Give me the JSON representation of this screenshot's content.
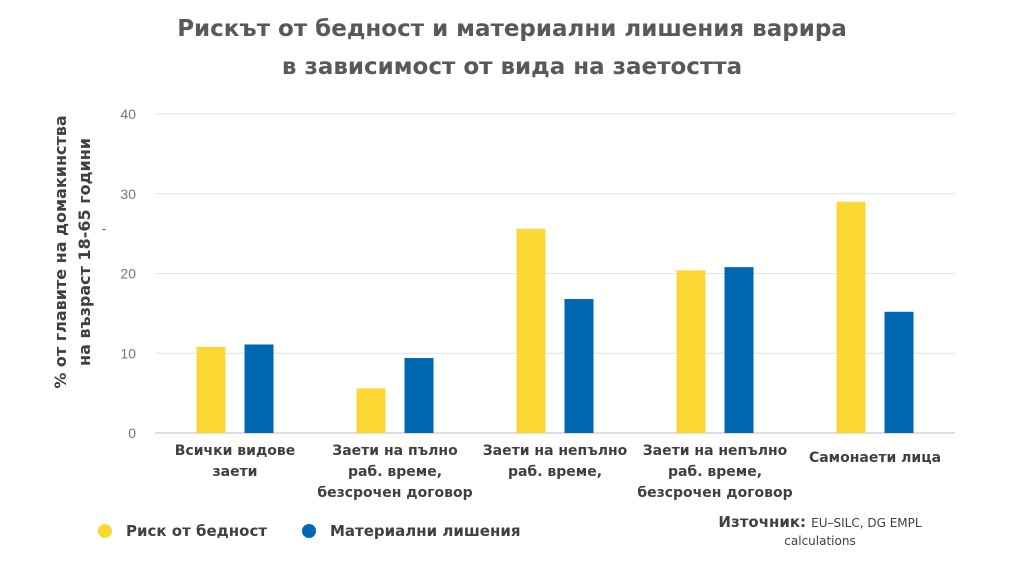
{
  "chart_data": {
    "type": "bar",
    "title_lines": [
      "Рискът от бедност и материални лишения варира",
      "в зависимост от вида на заетостта"
    ],
    "ylabel_lines": [
      "% от главите на домакинства",
      "на възраст 18-65 години"
    ],
    "ylabel_mark": "-",
    "ylim": [
      0,
      40
    ],
    "yticks": [
      "0",
      "10",
      "20",
      "30",
      "40"
    ],
    "categories": [
      [
        "Всички видове",
        "заети"
      ],
      [
        "Заети на пълно",
        "раб. време,",
        "безсрочен договор"
      ],
      [
        "Заети на непълно",
        "раб. време,"
      ],
      [
        "Заети на непълно",
        "раб. време,",
        "безсрочен договор"
      ],
      [
        "Самонаети лица"
      ]
    ],
    "series": [
      {
        "name": "Риск от бедност",
        "color": "#FDD835",
        "values": [
          10.8,
          5.6,
          25.6,
          20.4,
          29.0
        ]
      },
      {
        "name": "Материални лишения",
        "color": "#0067B1",
        "values": [
          11.1,
          9.4,
          16.8,
          20.8,
          15.2
        ]
      }
    ],
    "grid": true,
    "legend_position": "bottom-left"
  },
  "source": {
    "label": "Източник:",
    "text": "EU–SILC, DG EMPL",
    "text2": "calculations"
  }
}
